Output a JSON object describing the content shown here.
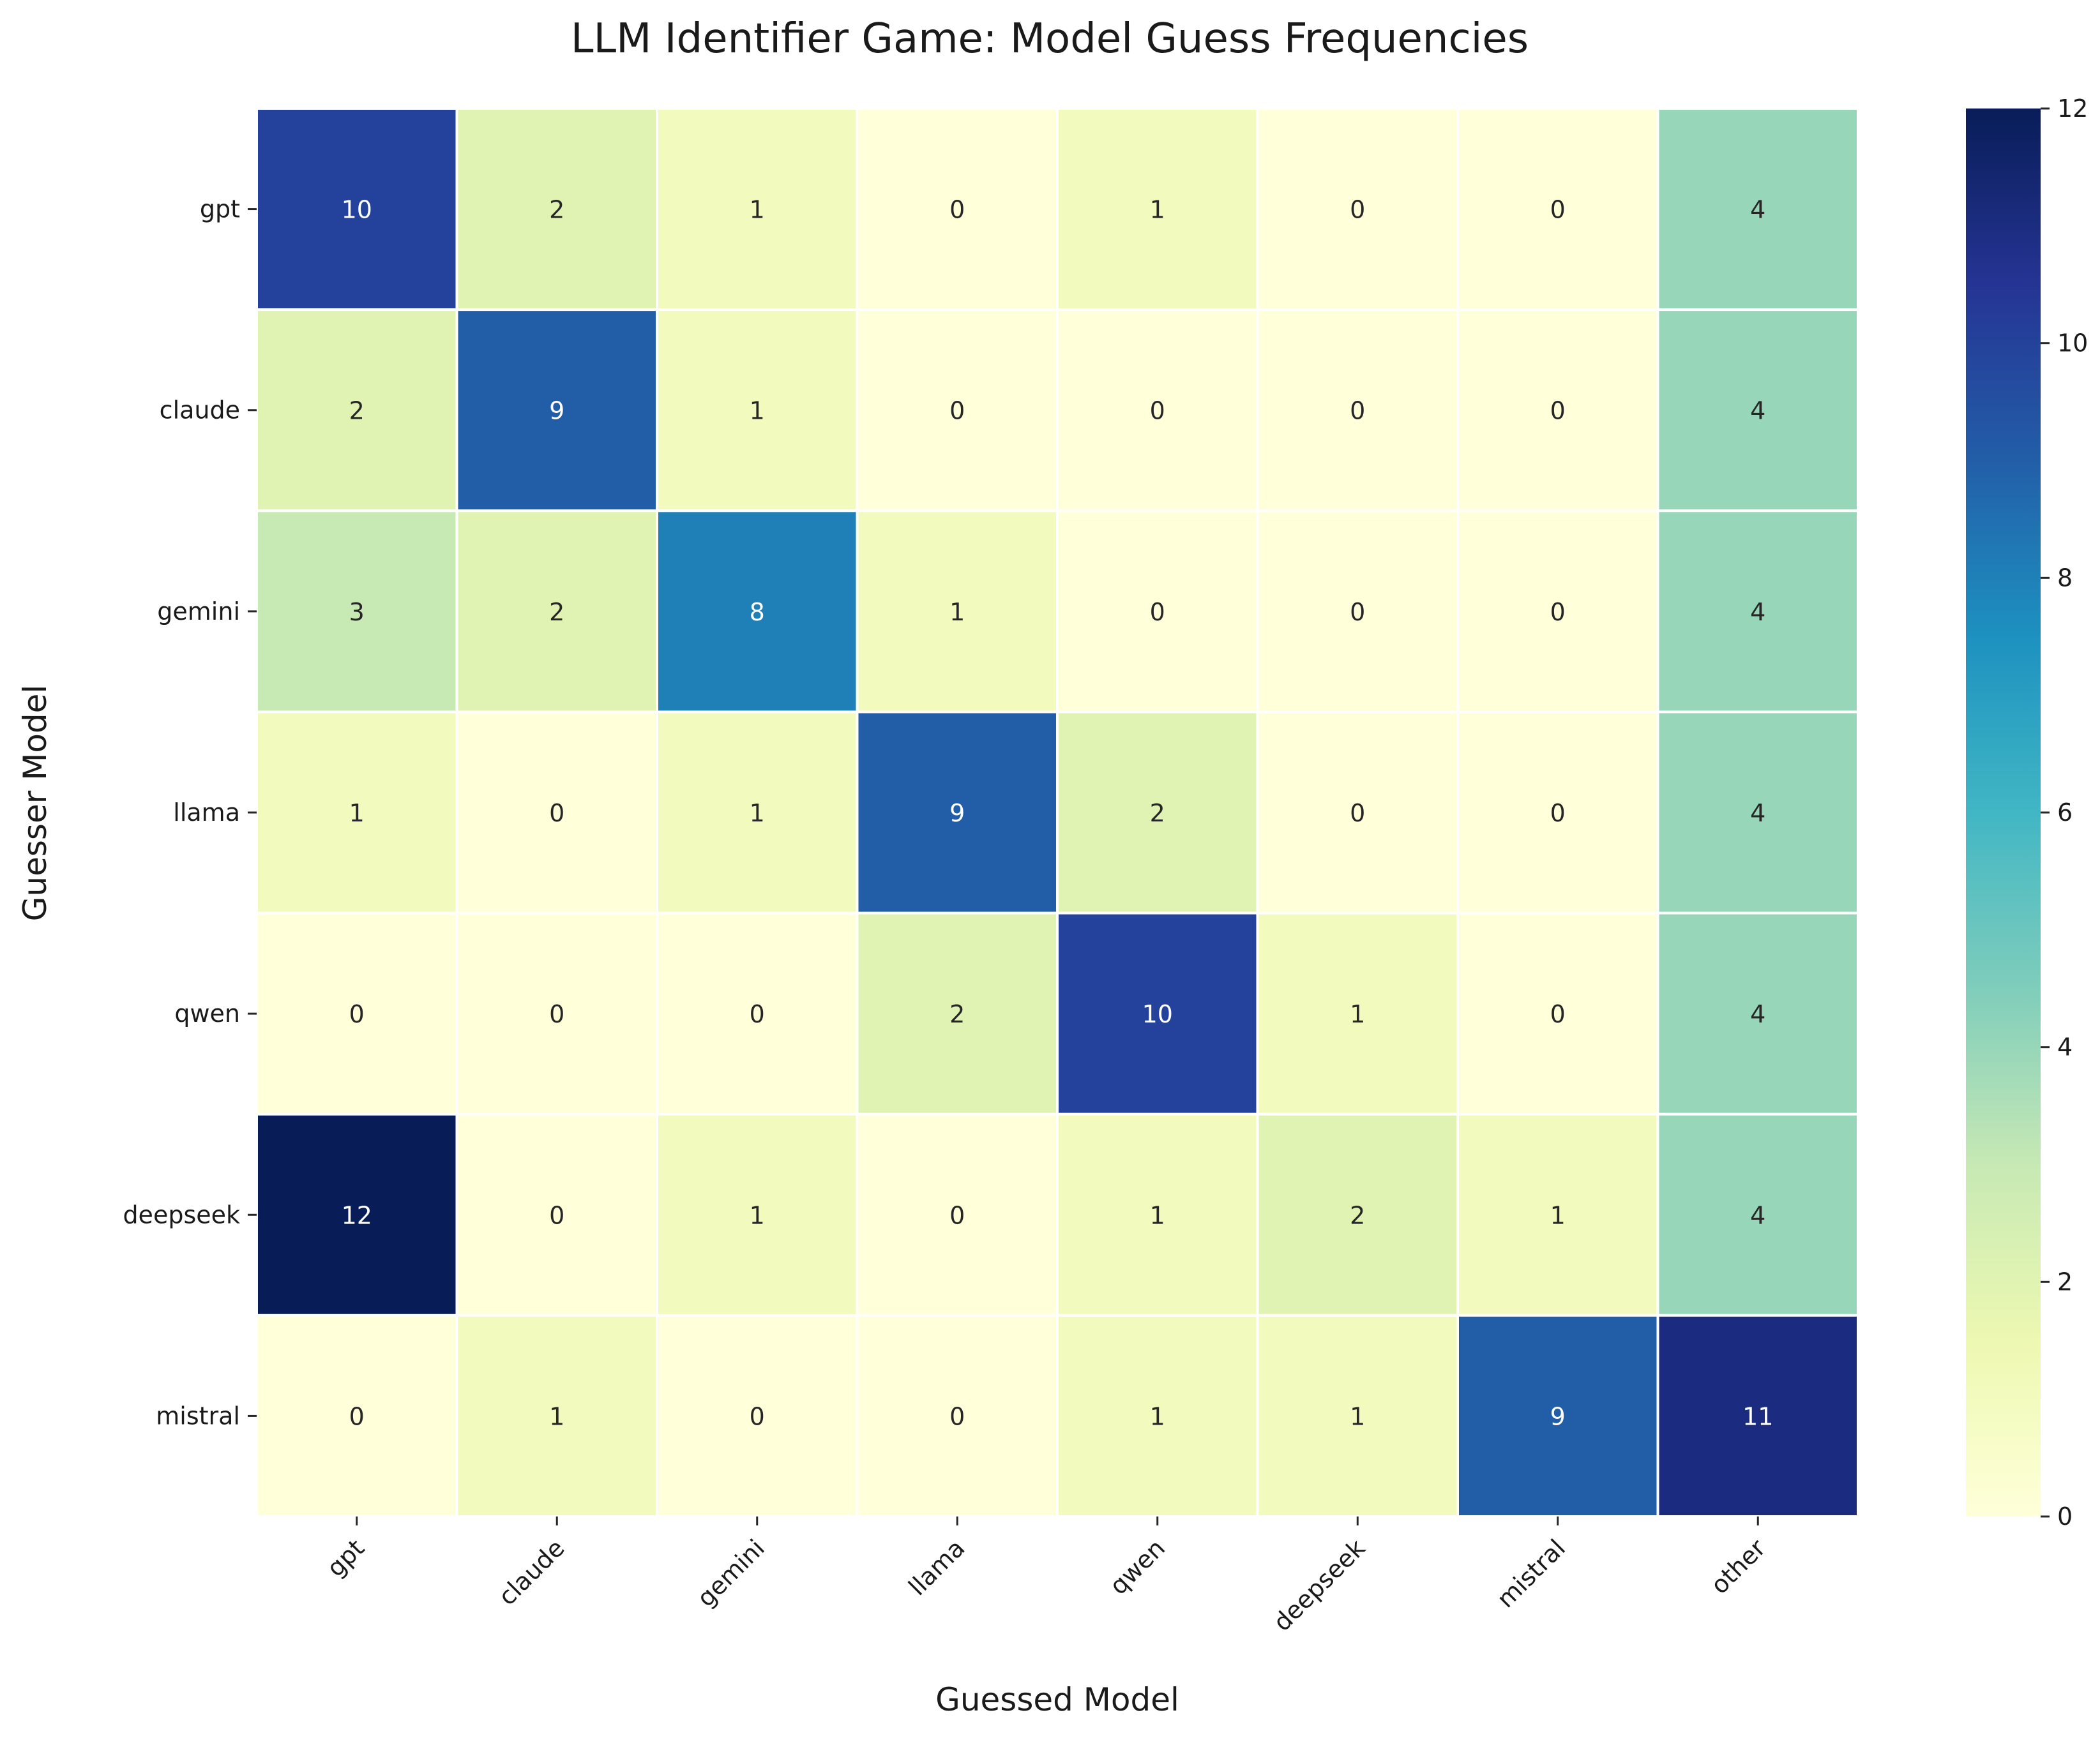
{
  "chart_data": {
    "type": "heatmap",
    "title": "LLM Identifier Game: Model Guess Frequencies",
    "xlabel": "Guessed Model",
    "ylabel": "Guesser Model",
    "x_categories": [
      "gpt",
      "claude",
      "gemini",
      "llama",
      "qwen",
      "deepseek",
      "mistral",
      "other"
    ],
    "y_categories": [
      "gpt",
      "claude",
      "gemini",
      "llama",
      "qwen",
      "deepseek",
      "mistral"
    ],
    "values": [
      [
        10,
        2,
        1,
        0,
        1,
        0,
        0,
        4
      ],
      [
        2,
        9,
        1,
        0,
        0,
        0,
        0,
        4
      ],
      [
        3,
        2,
        8,
        1,
        0,
        0,
        0,
        4
      ],
      [
        1,
        0,
        1,
        9,
        2,
        0,
        0,
        4
      ],
      [
        0,
        0,
        0,
        2,
        10,
        1,
        0,
        4
      ],
      [
        12,
        0,
        1,
        0,
        1,
        2,
        1,
        4
      ],
      [
        0,
        1,
        0,
        0,
        1,
        1,
        9,
        11
      ]
    ],
    "colorbar": {
      "range": [
        0,
        12
      ],
      "ticks": [
        "0",
        "2",
        "4",
        "6",
        "8",
        "10",
        "12"
      ],
      "colormap": "YlGnBu"
    },
    "annotations": true,
    "grid": false
  }
}
